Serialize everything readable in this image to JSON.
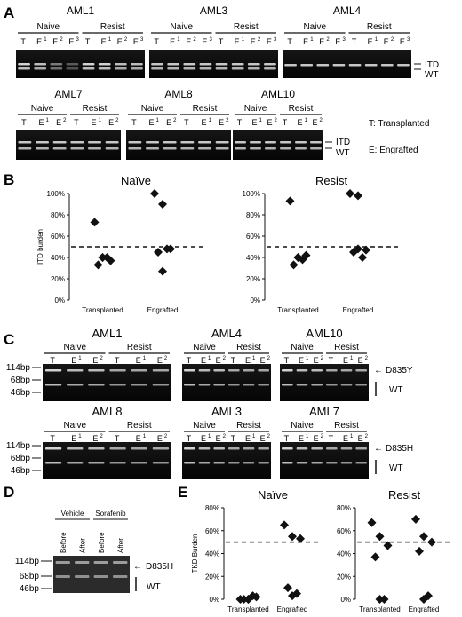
{
  "panels": {
    "A": {
      "label": "A",
      "gels": [
        {
          "name": "AML1",
          "groups": [
            "Naive",
            "Resist"
          ],
          "lanes": [
            [
              "T",
              "E",
              "1"
            ],
            [
              "E",
              "1",
              ""
            ],
            [
              "E",
              "2",
              ""
            ],
            [
              "E",
              "3",
              ""
            ],
            [
              "T",
              "",
              ""
            ],
            [
              "E",
              "1",
              ""
            ],
            [
              "E",
              "2",
              ""
            ],
            [
              "E",
              "3",
              ""
            ]
          ],
          "tone": "dark"
        },
        {
          "name": "AML3",
          "groups": [
            "Naive",
            "Resist"
          ],
          "lanes": [],
          "tone": "dark"
        },
        {
          "name": "AML4",
          "groups": [
            "Naive",
            "Resist"
          ],
          "lanes": [],
          "tone": "dark"
        },
        {
          "name": "AML7",
          "groups": [
            "Naive",
            "Resist"
          ],
          "lanes": [],
          "tone": "dark"
        },
        {
          "name": "AML8",
          "groups": [
            "Naive",
            "Resist"
          ],
          "lanes": [],
          "tone": "dark"
        },
        {
          "name": "AML10",
          "groups": [
            "Naive",
            "Resist"
          ],
          "lanes": [],
          "tone": "dark"
        }
      ],
      "band_labels": [
        "ITD",
        "WT"
      ],
      "legend": [
        "T: Transplanted",
        "E: Engrafted"
      ]
    },
    "B": {
      "label": "B",
      "ylabel": "ITD burden",
      "yticks": [
        "100%",
        "80%",
        "60%",
        "40%",
        "20%",
        "0%"
      ]
    },
    "C": {
      "label": "C",
      "gels": [
        "AML1",
        "AML4",
        "AML10",
        "AML8",
        "AML3",
        "AML7"
      ],
      "groups": [
        "Naive",
        "Resist"
      ],
      "ladder": [
        "114bp",
        "68bp",
        "46bp"
      ],
      "band_labels_top": [
        "D835Y",
        "WT"
      ],
      "band_labels_bottom": [
        "D835H",
        "WT"
      ]
    },
    "D": {
      "label": "D",
      "groups": [
        "Vehicle",
        "Sorafenib"
      ],
      "lanes": [
        "Before",
        "After",
        "Before",
        "After"
      ],
      "ladder": [
        "114bp",
        "68bp",
        "46bp"
      ],
      "band_labels": [
        "D835H",
        "WT"
      ]
    },
    "E": {
      "label": "E",
      "ylabel": "TKD Burden",
      "yticks": [
        "80%",
        "60%",
        "40%",
        "20%",
        "0%"
      ]
    }
  },
  "lane_sets": {
    "four": [
      "T",
      "E",
      "E",
      "E"
    ],
    "three": [
      "T",
      "E",
      "E"
    ],
    "sup4": [
      "",
      "1",
      "2",
      "3"
    ],
    "sup3": [
      "",
      "1",
      "2"
    ]
  },
  "chart_data": [
    {
      "type": "scatter",
      "title": "Naïve",
      "ylabel": "ITD burden",
      "categories": [
        "Transplanted",
        "Engrafted"
      ],
      "ylim": [
        0,
        100
      ],
      "reference_line": 50,
      "series": [
        {
          "values": [
            [
              0,
              73
            ],
            [
              0,
              40
            ],
            [
              0,
              37
            ],
            [
              0,
              33
            ],
            [
              0,
              40
            ],
            [
              0,
              40
            ]
          ]
        },
        {
          "values": [
            [
              1,
              100
            ],
            [
              1,
              90
            ],
            [
              1,
              48
            ],
            [
              1,
              45
            ],
            [
              1,
              48
            ],
            [
              1,
              27
            ]
          ]
        }
      ]
    },
    {
      "type": "scatter",
      "title": "Resist",
      "ylabel": "ITD burden",
      "categories": [
        "Transplanted",
        "Engrafted"
      ],
      "ylim": [
        0,
        100
      ],
      "reference_line": 50,
      "series": [
        {
          "values": [
            [
              0,
              93
            ],
            [
              0,
              40
            ],
            [
              0,
              42
            ],
            [
              0,
              33
            ],
            [
              0,
              38
            ],
            [
              0,
              40
            ]
          ]
        },
        {
          "values": [
            [
              1,
              100
            ],
            [
              1,
              98
            ],
            [
              1,
              47
            ],
            [
              1,
              45
            ],
            [
              1,
              40
            ],
            [
              1,
              48
            ]
          ]
        }
      ]
    },
    {
      "type": "scatter",
      "title": "Naïve",
      "ylabel": "TKD Burden",
      "categories": [
        "Transplanted",
        "Engrafted"
      ],
      "ylim": [
        0,
        80
      ],
      "reference_line": 50,
      "series": [
        {
          "values": [
            [
              0,
              0
            ],
            [
              0,
              0
            ],
            [
              0,
              2
            ],
            [
              0,
              0
            ],
            [
              0,
              3
            ],
            [
              0,
              0
            ]
          ]
        },
        {
          "values": [
            [
              1,
              65
            ],
            [
              1,
              55
            ],
            [
              1,
              53
            ],
            [
              1,
              10
            ],
            [
              1,
              5
            ],
            [
              1,
              3
            ]
          ]
        }
      ]
    },
    {
      "type": "scatter",
      "title": "Resist",
      "ylabel": "TKD Burden",
      "categories": [
        "Transplanted",
        "Engrafted"
      ],
      "ylim": [
        0,
        80
      ],
      "reference_line": 50,
      "series": [
        {
          "values": [
            [
              0,
              67
            ],
            [
              0,
              55
            ],
            [
              0,
              47
            ],
            [
              0,
              37
            ],
            [
              0,
              0
            ],
            [
              0,
              0
            ]
          ]
        },
        {
          "values": [
            [
              1,
              70
            ],
            [
              1,
              55
            ],
            [
              1,
              50
            ],
            [
              1,
              42
            ],
            [
              1,
              3
            ],
            [
              1,
              0
            ]
          ]
        }
      ]
    }
  ]
}
